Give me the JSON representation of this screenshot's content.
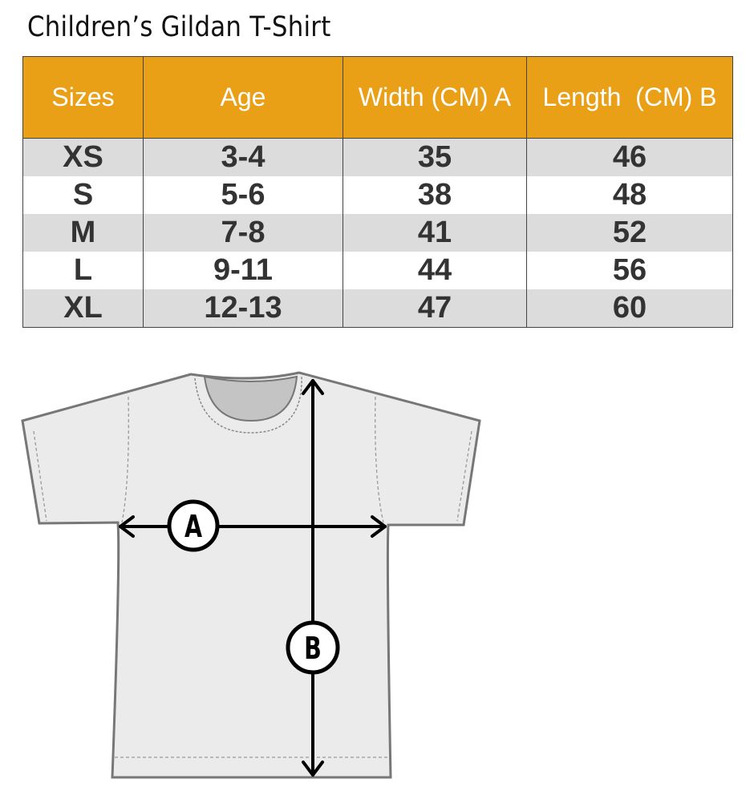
{
  "title": "Children’s Gildan T-Shirt",
  "table": {
    "headers": [
      "Sizes",
      "Age",
      "Width (CM) A",
      "Length  (CM) B"
    ],
    "rows": [
      [
        "XS",
        "3-4",
        "35",
        "46"
      ],
      [
        "S",
        "5-6",
        "38",
        "48"
      ],
      [
        "M",
        "7-8",
        "41",
        "52"
      ],
      [
        "L",
        "9-11",
        "44",
        "56"
      ],
      [
        "XL",
        "12-13",
        "47",
        "60"
      ]
    ]
  },
  "diagram": {
    "label_a": "A",
    "label_b": "B"
  },
  "colors": {
    "header": "#e99f16",
    "row_alt": "#dcdcdc",
    "shirt": "#ebebeb"
  }
}
